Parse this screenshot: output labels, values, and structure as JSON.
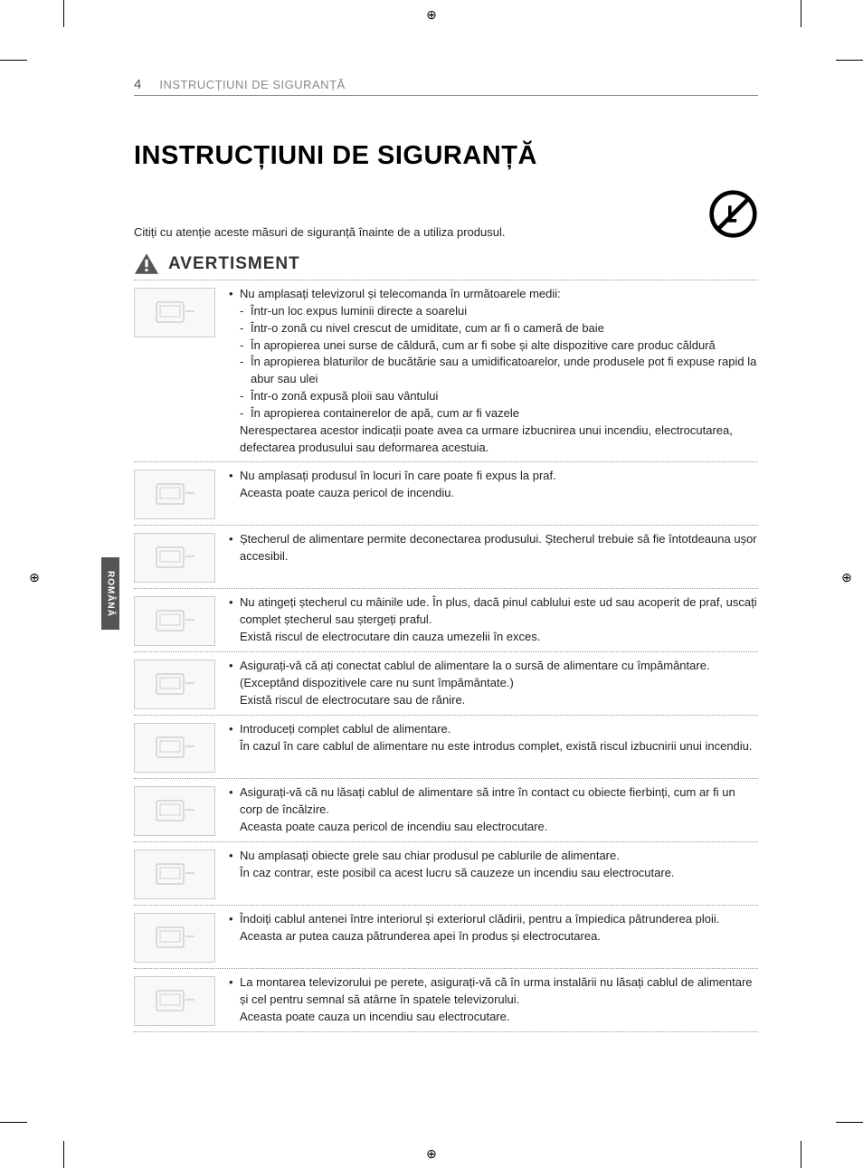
{
  "page_number": "4",
  "header_title": "INSTRUCȚIUNI DE SIGURANȚĂ",
  "main_title": "INSTRUCȚIUNI DE SIGURANȚĂ",
  "intro_text": "Citiți cu atenție aceste măsuri de siguranță înainte de a utiliza produsul.",
  "warning_heading": "AVERTISMENT",
  "side_tab": "ROMÂNĂ",
  "warnings": [
    {
      "icon": "tv-environments",
      "lines": [
        {
          "type": "bullet",
          "text": "Nu amplasați televizorul și telecomanda în următoarele medii:"
        },
        {
          "type": "sub",
          "text": "Într-un loc expus luminii directe a soarelui"
        },
        {
          "type": "sub",
          "text": "Într-o zonă cu nivel crescut de umiditate, cum ar fi o cameră de baie"
        },
        {
          "type": "sub",
          "text": "În apropierea unei surse de căldură, cum ar fi sobe și alte dispozitive care produc căldură"
        },
        {
          "type": "sub",
          "text": "În apropierea blaturilor de bucătărie sau a umidificatoarelor, unde produsele pot fi expuse rapid la abur sau ulei"
        },
        {
          "type": "sub",
          "text": "Într-o zonă expusă ploii sau vântului"
        },
        {
          "type": "sub",
          "text": "În apropierea containerelor de apă, cum ar fi vazele"
        },
        {
          "type": "plain",
          "text": "Nerespectarea acestor indicații poate avea ca urmare izbucnirea unui incendiu, electrocutarea, defectarea produsului sau deformarea acestuia."
        }
      ]
    },
    {
      "icon": "dust",
      "lines": [
        {
          "type": "bullet",
          "text": "Nu amplasați produsul în locuri în care poate fi expus la praf."
        },
        {
          "type": "plain",
          "text": "Aceasta poate cauza pericol de incendiu."
        }
      ]
    },
    {
      "icon": "plug-accessible",
      "lines": [
        {
          "type": "bullet",
          "text": "Ștecherul de alimentare permite deconectarea produsului. Ștecherul trebuie să fie întotdeauna ușor accesibil."
        }
      ]
    },
    {
      "icon": "wet-hands",
      "lines": [
        {
          "type": "bullet",
          "text": "Nu atingeți ștecherul cu mâinile ude. În plus, dacă pinul cablului este ud sau acoperit de praf, uscați complet ștecherul sau ștergeți praful."
        },
        {
          "type": "plain",
          "text": "Există riscul de electrocutare din cauza umezelii în exces."
        }
      ]
    },
    {
      "icon": "grounded",
      "lines": [
        {
          "type": "bullet",
          "text": "Asigurați-vă că ați conectat cablul de alimentare la o sursă de alimentare cu împământare. (Exceptând dispozitivele care nu sunt împământate.)"
        },
        {
          "type": "plain",
          "text": "Există riscul de electrocutare sau de rănire."
        }
      ]
    },
    {
      "icon": "insert-fully",
      "lines": [
        {
          "type": "bullet",
          "text": "Introduceți complet cablul de alimentare."
        },
        {
          "type": "plain",
          "text": "În cazul în care cablul de alimentare nu este introdus complet, există riscul izbucnirii unui incendiu."
        }
      ]
    },
    {
      "icon": "heat-cable",
      "lines": [
        {
          "type": "bullet",
          "text": "Asigurați-vă că nu lăsați cablul de alimentare să intre în contact cu obiecte fierbinți, cum ar fi un corp de încălzire."
        },
        {
          "type": "plain",
          "text": "Aceasta poate cauza pericol de incendiu sau electrocutare."
        }
      ]
    },
    {
      "icon": "heavy-on-cable",
      "lines": [
        {
          "type": "bullet",
          "text": "Nu amplasați obiecte grele sau chiar produsul pe cablurile de alimentare."
        },
        {
          "type": "plain",
          "text": "În caz contrar, este posibil ca acest lucru să cauzeze un incendiu sau electrocutare."
        }
      ]
    },
    {
      "icon": "antenna-bend",
      "lines": [
        {
          "type": "bullet",
          "text": "Îndoiți cablul antenei între interiorul și exteriorul clădirii, pentru a împiedica pătrunderea ploii."
        },
        {
          "type": "plain",
          "text": "Aceasta ar putea cauza pătrunderea apei în produs și electrocutarea."
        }
      ]
    },
    {
      "icon": "wall-mount",
      "lines": [
        {
          "type": "bullet",
          "text": "La montarea televizorului pe perete, asigurați-vă că în urma instalării nu lăsați cablul de alimentare și cel pentru semnal să atârne în spatele televizorului."
        },
        {
          "type": "plain",
          "text": "Aceasta poate cauza un incendiu sau electrocutare."
        }
      ]
    }
  ],
  "colors": {
    "text": "#222222",
    "muted": "#888888",
    "tab_bg": "#555555",
    "tab_text": "#ffffff",
    "border": "#999999"
  }
}
